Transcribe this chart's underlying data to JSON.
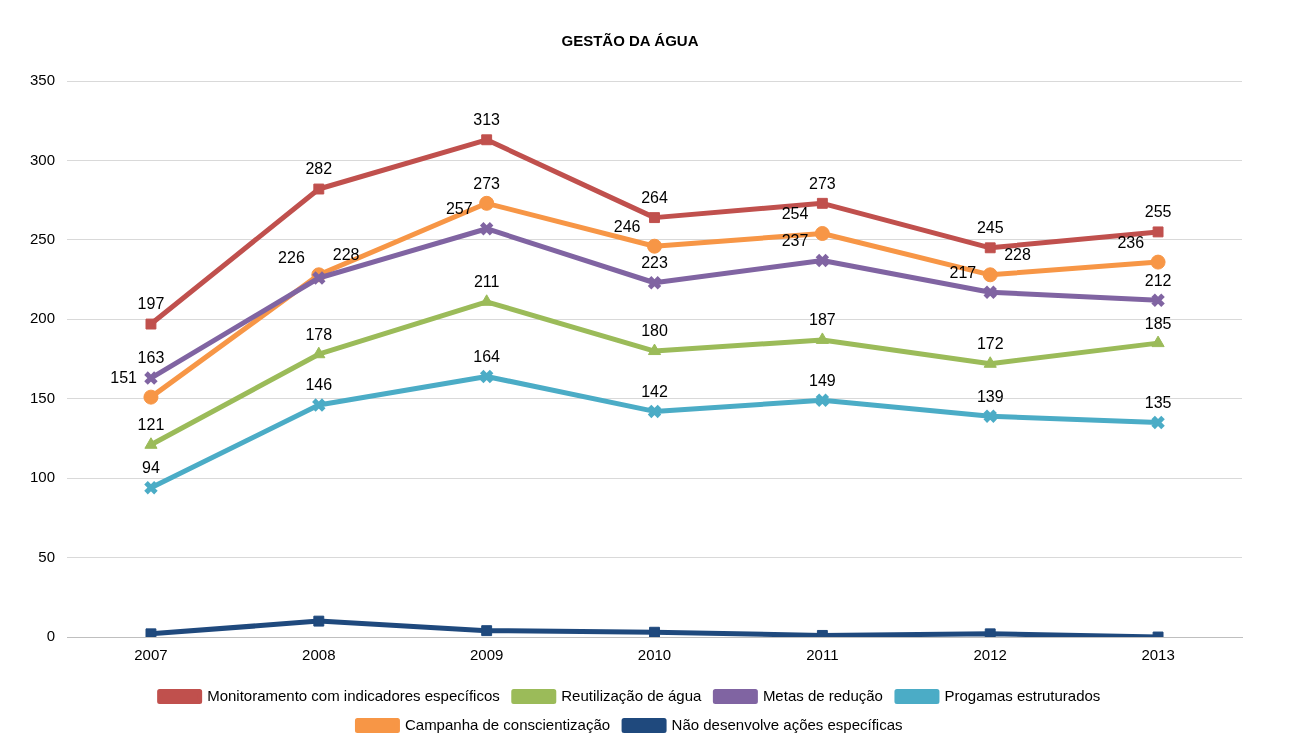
{
  "chart_data": {
    "type": "line",
    "title": "GESTÃO DA ÁGUA",
    "categories": [
      "2007",
      "2008",
      "2009",
      "2010",
      "2011",
      "2012",
      "2013"
    ],
    "series": [
      {
        "name": "Monitoramento com indicadores específicos",
        "color": "#c0504d",
        "marker": "square",
        "values": [
          197,
          282,
          313,
          264,
          273,
          245,
          255
        ],
        "value_labels": [
          "197",
          "282",
          "313",
          "264",
          "273",
          "245",
          "255"
        ]
      },
      {
        "name": "Reutilização de água",
        "color": "#9bbb59",
        "marker": "triangle",
        "values": [
          121,
          178,
          211,
          180,
          187,
          172,
          185
        ],
        "value_labels": [
          "121",
          "178",
          "211",
          "180",
          "187",
          "172",
          "185"
        ]
      },
      {
        "name": "Metas de redução",
        "color": "#8064a2",
        "marker": "cross",
        "values": [
          163,
          226,
          257,
          223,
          237,
          217,
          212
        ],
        "value_labels": [
          "163",
          "226",
          "257",
          "223",
          "237",
          "217",
          "212"
        ]
      },
      {
        "name": "Progamas estruturados",
        "color": "#4bacc6",
        "marker": "cross",
        "values": [
          94,
          146,
          164,
          142,
          149,
          139,
          135
        ],
        "value_labels": [
          "94",
          "146",
          "164",
          "142",
          "149",
          "139",
          "135"
        ]
      },
      {
        "name": "Campanha de conscientização",
        "color": "#f79646",
        "marker": "circle",
        "values": [
          151,
          228,
          273,
          246,
          254,
          228,
          236
        ],
        "value_labels": [
          "151",
          "228",
          "273",
          "246",
          "254",
          "228",
          "236"
        ]
      },
      {
        "name": "Não desenvolve ações específicas",
        "color": "#1f497d",
        "marker": "square",
        "values": [
          2,
          10,
          4,
          3,
          1,
          2,
          0
        ]
      }
    ],
    "ylim": [
      0,
      350
    ],
    "yticks": [
      0,
      50,
      100,
      150,
      200,
      250,
      300,
      350
    ],
    "grid": "y",
    "legend": "bottom",
    "line_style": "solid"
  }
}
